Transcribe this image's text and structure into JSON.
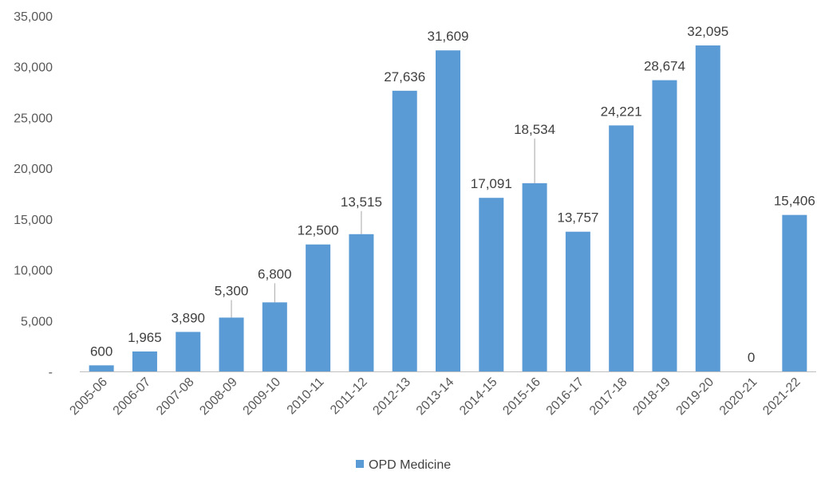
{
  "chart_data": {
    "type": "bar",
    "categories": [
      "2005-06",
      "2006-07",
      "2007-08",
      "2008-09",
      "2009-10",
      "2010-11",
      "2011-12",
      "2012-13",
      "2013-14",
      "2014-15",
      "2015-16",
      "2016-17",
      "2017-18",
      "2018-19",
      "2019-20",
      "2020-21",
      "2021-22"
    ],
    "series": [
      {
        "name": "OPD Medicine",
        "values": [
          600,
          1965,
          3890,
          5300,
          6800,
          12500,
          13515,
          27636,
          31609,
          17091,
          18534,
          13757,
          24221,
          28674,
          32095,
          0,
          15406
        ],
        "labels": [
          "600",
          "1,965",
          "3,890",
          "5,300",
          "6,800",
          "12,500",
          "13,515",
          "27,636",
          "31,609",
          "17,091",
          "18,534",
          "13,757",
          "24,221",
          "28,674",
          "32,095",
          "0",
          "15,406"
        ],
        "color": "#5B9BD5"
      }
    ],
    "ylim": [
      0,
      35000
    ],
    "yticks": [
      0,
      5000,
      10000,
      15000,
      20000,
      25000,
      30000,
      35000
    ],
    "ytick_labels": [
      "-",
      "5,000",
      "10,000",
      "15,000",
      "20,000",
      "25,000",
      "30,000",
      "35,000"
    ],
    "grid": false,
    "legend": "bottom",
    "leader_lines": [
      "2008-09",
      "2009-10",
      "2011-12",
      "2015-16"
    ]
  }
}
